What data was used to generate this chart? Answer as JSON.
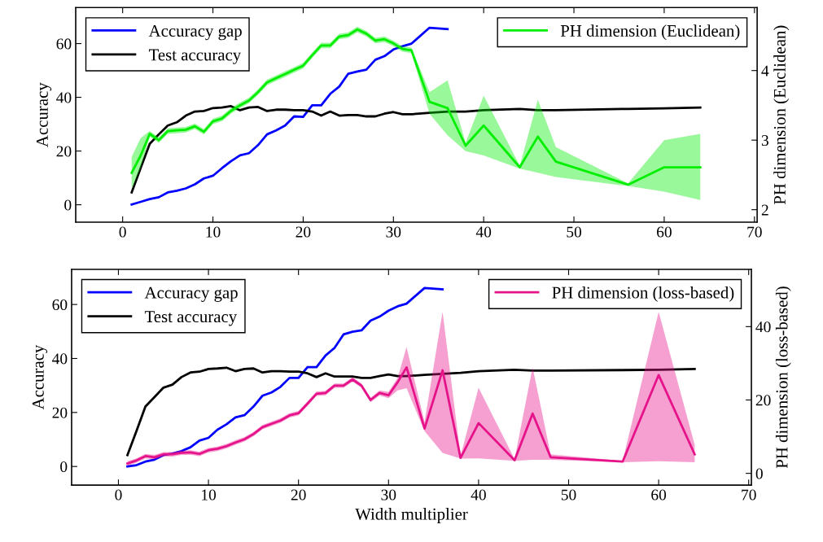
{
  "chart_data": [
    {
      "type": "line",
      "ylabel": "Accuracy",
      "y2label": "PH dimension (Euclidean)",
      "legend": "top",
      "grid": false,
      "marker": "none",
      "line_style": "solid",
      "x": [
        1,
        2,
        3,
        4,
        5,
        6,
        7,
        8,
        9,
        10,
        11,
        12,
        13,
        14,
        15,
        16,
        17,
        18,
        19,
        20,
        21,
        22,
        23,
        24,
        25,
        26,
        27,
        28,
        29,
        30,
        31,
        32,
        34,
        36,
        38,
        40,
        44,
        46,
        48,
        56,
        60,
        64
      ],
      "xlim": [
        -5.2,
        70.3
      ],
      "xticks": [
        0,
        10,
        20,
        30,
        40,
        50,
        60,
        70
      ],
      "ylim": [
        -6.5,
        73.4
      ],
      "yticks": [
        0,
        20,
        40,
        60
      ],
      "y2lim": [
        1.82,
        4.905
      ],
      "y2ticks": [
        2,
        3,
        4
      ],
      "series": [
        {
          "name": "Accuracy gap",
          "color": "#0000ff",
          "values": [
            0.1,
            1.1,
            2.1,
            2.8,
            4.6,
            5.2,
            6.1,
            7.6,
            9.8,
            10.8,
            13.6,
            16.2,
            18.4,
            19.2,
            22.2,
            26.2,
            27.7,
            29.5,
            32.9,
            32.7,
            37,
            37,
            41.3,
            44,
            48.8,
            49.6,
            50.3,
            54,
            55.3,
            57.8,
            59,
            60,
            65.9,
            65.4,
            null,
            null,
            null,
            null,
            null,
            null,
            null,
            null
          ]
        },
        {
          "name": "Test accuracy",
          "color": "#000000",
          "values": [
            4.6,
            13.7,
            22.7,
            26.2,
            29.5,
            30.7,
            33.2,
            34.7,
            34.9,
            36,
            36.2,
            36.7,
            35.2,
            36.2,
            36.4,
            34.9,
            35.4,
            35.4,
            35.2,
            35.2,
            34.7,
            33.2,
            34.7,
            33.2,
            33.4,
            33.4,
            32.9,
            32.9,
            33.9,
            34.5,
            33.7,
            33.7,
            34.2,
            34.7,
            34.7,
            35.2,
            35.7,
            35.2,
            35.2,
            35.7,
            35.9,
            36.2
          ]
        },
        {
          "name": "PH dimension (Euclidean)",
          "color": "#00ee00",
          "axis": "y2",
          "values": [
            2.53,
            2.78,
            3.09,
            3.0,
            3.13,
            3.14,
            3.15,
            3.2,
            3.12,
            3.27,
            3.31,
            3.42,
            3.5,
            3.57,
            3.69,
            3.83,
            3.89,
            3.95,
            4.01,
            4.07,
            4.22,
            4.36,
            4.36,
            4.49,
            4.51,
            4.59,
            4.53,
            4.43,
            4.45,
            4.39,
            4.31,
            4.29,
            3.55,
            3.46,
            2.92,
            3.21,
            2.61,
            3.05,
            2.69,
            2.36,
            2.61,
            2.61
          ],
          "lower": [
            2.3,
            2.6,
            3.05,
            2.96,
            3.09,
            3.1,
            3.11,
            3.16,
            3.08,
            3.23,
            3.27,
            3.38,
            3.46,
            3.53,
            3.65,
            3.79,
            3.85,
            3.91,
            3.97,
            4.03,
            4.18,
            4.32,
            4.32,
            4.45,
            4.47,
            4.55,
            4.49,
            4.39,
            4.41,
            4.35,
            4.27,
            4.25,
            3.38,
            3.07,
            2.84,
            2.78,
            2.59,
            2.53,
            2.47,
            2.34,
            2.26,
            2.14
          ],
          "upper": [
            2.76,
            3.03,
            3.13,
            3.04,
            3.17,
            3.18,
            3.19,
            3.24,
            3.16,
            3.31,
            3.35,
            3.46,
            3.54,
            3.61,
            3.73,
            3.87,
            3.93,
            3.99,
            4.05,
            4.11,
            4.26,
            4.4,
            4.4,
            4.53,
            4.55,
            4.63,
            4.57,
            4.47,
            4.49,
            4.43,
            4.35,
            4.33,
            3.69,
            3.86,
            2.96,
            3.64,
            2.63,
            3.58,
            2.9,
            2.38,
            3.0,
            3.09
          ]
        }
      ]
    },
    {
      "type": "line",
      "xlabel": "Width multiplier",
      "ylabel": "Accuracy",
      "y2label": "PH dimension (loss-based)",
      "legend": "top",
      "grid": false,
      "marker": "none",
      "line_style": "solid",
      "x": [
        1,
        2,
        3,
        4,
        5,
        6,
        7,
        8,
        9,
        10,
        11,
        12,
        13,
        14,
        15,
        16,
        17,
        18,
        19,
        20,
        21,
        22,
        23,
        24,
        25,
        26,
        27,
        28,
        29,
        30,
        31,
        32,
        34,
        36,
        38,
        40,
        44,
        46,
        48,
        56,
        60,
        64
      ],
      "xlim": [
        -5.2,
        70.3
      ],
      "xticks": [
        0,
        10,
        20,
        30,
        40,
        50,
        60,
        70
      ],
      "ylim": [
        -6.9,
        73
      ],
      "yticks": [
        0,
        20,
        40,
        60
      ],
      "y2lim": [
        -3.2,
        55.6
      ],
      "y2ticks": [
        0,
        20,
        40
      ],
      "series": [
        {
          "name": "Accuracy gap",
          "color": "#0000ff",
          "values": [
            0,
            0.5,
            1.8,
            2.5,
            4.2,
            4.8,
            5.7,
            7.1,
            9.6,
            10.6,
            13.6,
            15.6,
            18.2,
            19,
            22.2,
            26.2,
            27.4,
            29.5,
            32.8,
            32.8,
            36.8,
            36.8,
            41.1,
            43.9,
            48.9,
            49.9,
            50.4,
            54,
            55.5,
            57.7,
            59.3,
            60.3,
            66.1,
            65.6,
            null,
            null,
            null,
            null,
            null,
            null,
            null,
            null
          ]
        },
        {
          "name": "Test accuracy",
          "color": "#000000",
          "values": [
            4.2,
            13.1,
            22.2,
            25.7,
            29.2,
            30.3,
            33.1,
            34.8,
            35.1,
            36.1,
            36.3,
            36.6,
            35.3,
            36.1,
            36.3,
            34.8,
            35.3,
            35.3,
            35.1,
            35.1,
            34.5,
            33.1,
            34.5,
            33.3,
            33.3,
            33.3,
            32.8,
            32.8,
            33.5,
            34.1,
            33.5,
            33.5,
            33.9,
            34.3,
            34.7,
            35.3,
            35.8,
            35.5,
            35.5,
            35.7,
            35.8,
            36.1
          ]
        },
        {
          "name": "PH dimension (loss-based)",
          "color": "#e6128a",
          "axis": "y2",
          "values": [
            2.7,
            3.5,
            4.7,
            4.4,
            5.2,
            5.2,
            5.6,
            5.7,
            5.3,
            6.3,
            6.7,
            7.4,
            8.4,
            9.3,
            10.7,
            12.6,
            13.5,
            14.4,
            15.8,
            16.4,
            19,
            21.7,
            21.9,
            23.9,
            23.9,
            25.6,
            23.9,
            20,
            21.9,
            21.3,
            24.8,
            28.9,
            12.2,
            28.1,
            4.2,
            13.7,
            3.6,
            16.3,
            4.4,
            3.2,
            26.8,
            5.2
          ],
          "lower": [
            2.1,
            2.9,
            4.1,
            3.8,
            4.6,
            4.6,
            5.0,
            5.1,
            4.7,
            5.7,
            6.1,
            6.8,
            7.8,
            8.7,
            10.1,
            12.0,
            12.9,
            13.8,
            15.2,
            15.8,
            18.4,
            21.1,
            21.3,
            23.3,
            23.3,
            25.0,
            23.3,
            19.4,
            21.2,
            20.5,
            22.6,
            23.2,
            11.5,
            5.6,
            4.0,
            4.1,
            3.4,
            3.7,
            3.7,
            3.0,
            3.3,
            3.0
          ],
          "upper": [
            3.3,
            4.1,
            5.3,
            5.0,
            5.8,
            5.8,
            6.2,
            6.3,
            5.9,
            6.9,
            7.3,
            8.0,
            9.0,
            9.9,
            11.3,
            13.2,
            14.1,
            15.0,
            16.4,
            17.0,
            19.6,
            22.3,
            22.5,
            24.5,
            24.5,
            26.2,
            24.5,
            20.6,
            22.6,
            22.2,
            26,
            34.4,
            14,
            44,
            4.8,
            23.3,
            3.9,
            28.9,
            5.2,
            3.4,
            44,
            7.8
          ]
        }
      ]
    }
  ]
}
